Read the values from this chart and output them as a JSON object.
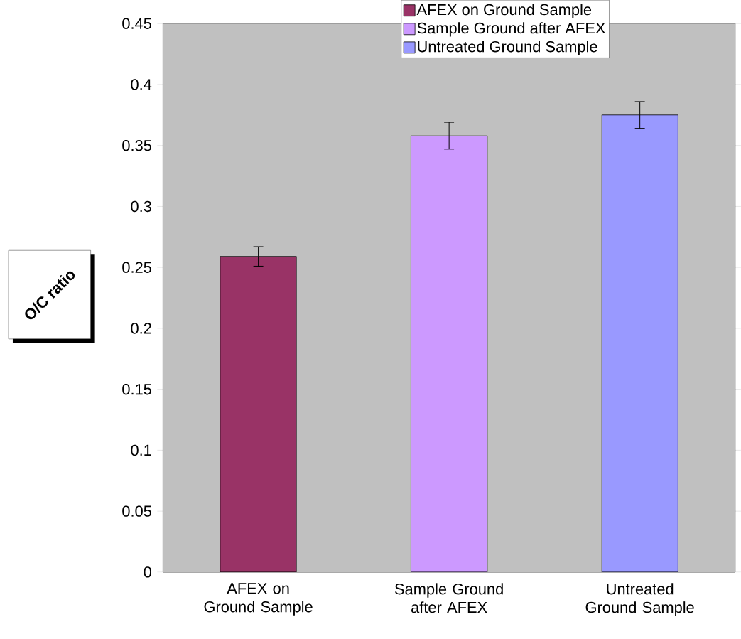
{
  "chart_data": {
    "type": "bar",
    "ylabel": "O/C ratio",
    "categories": [
      "AFEX on Ground Sample",
      "Sample Ground after AFEX",
      "Untreated Ground Sample"
    ],
    "series": [
      {
        "name": "AFEX on Ground Sample",
        "color": "#993366",
        "values": [
          0.259,
          null,
          null
        ],
        "errors": [
          0.008,
          null,
          null
        ]
      },
      {
        "name": "Sample Ground after AFEX",
        "color": "#cc99ff",
        "values": [
          null,
          0.358,
          null
        ],
        "errors": [
          null,
          0.011,
          null
        ]
      },
      {
        "name": "Untreated Ground Sample",
        "color": "#9999ff",
        "values": [
          null,
          null,
          0.375
        ],
        "errors": [
          null,
          null,
          0.011
        ]
      }
    ],
    "ylim": [
      0,
      0.45
    ],
    "yticks": [
      0,
      0.05,
      0.1,
      0.15,
      0.2,
      0.25,
      0.3,
      0.35,
      0.4,
      0.45
    ],
    "grid": "y",
    "legend": "top right"
  }
}
